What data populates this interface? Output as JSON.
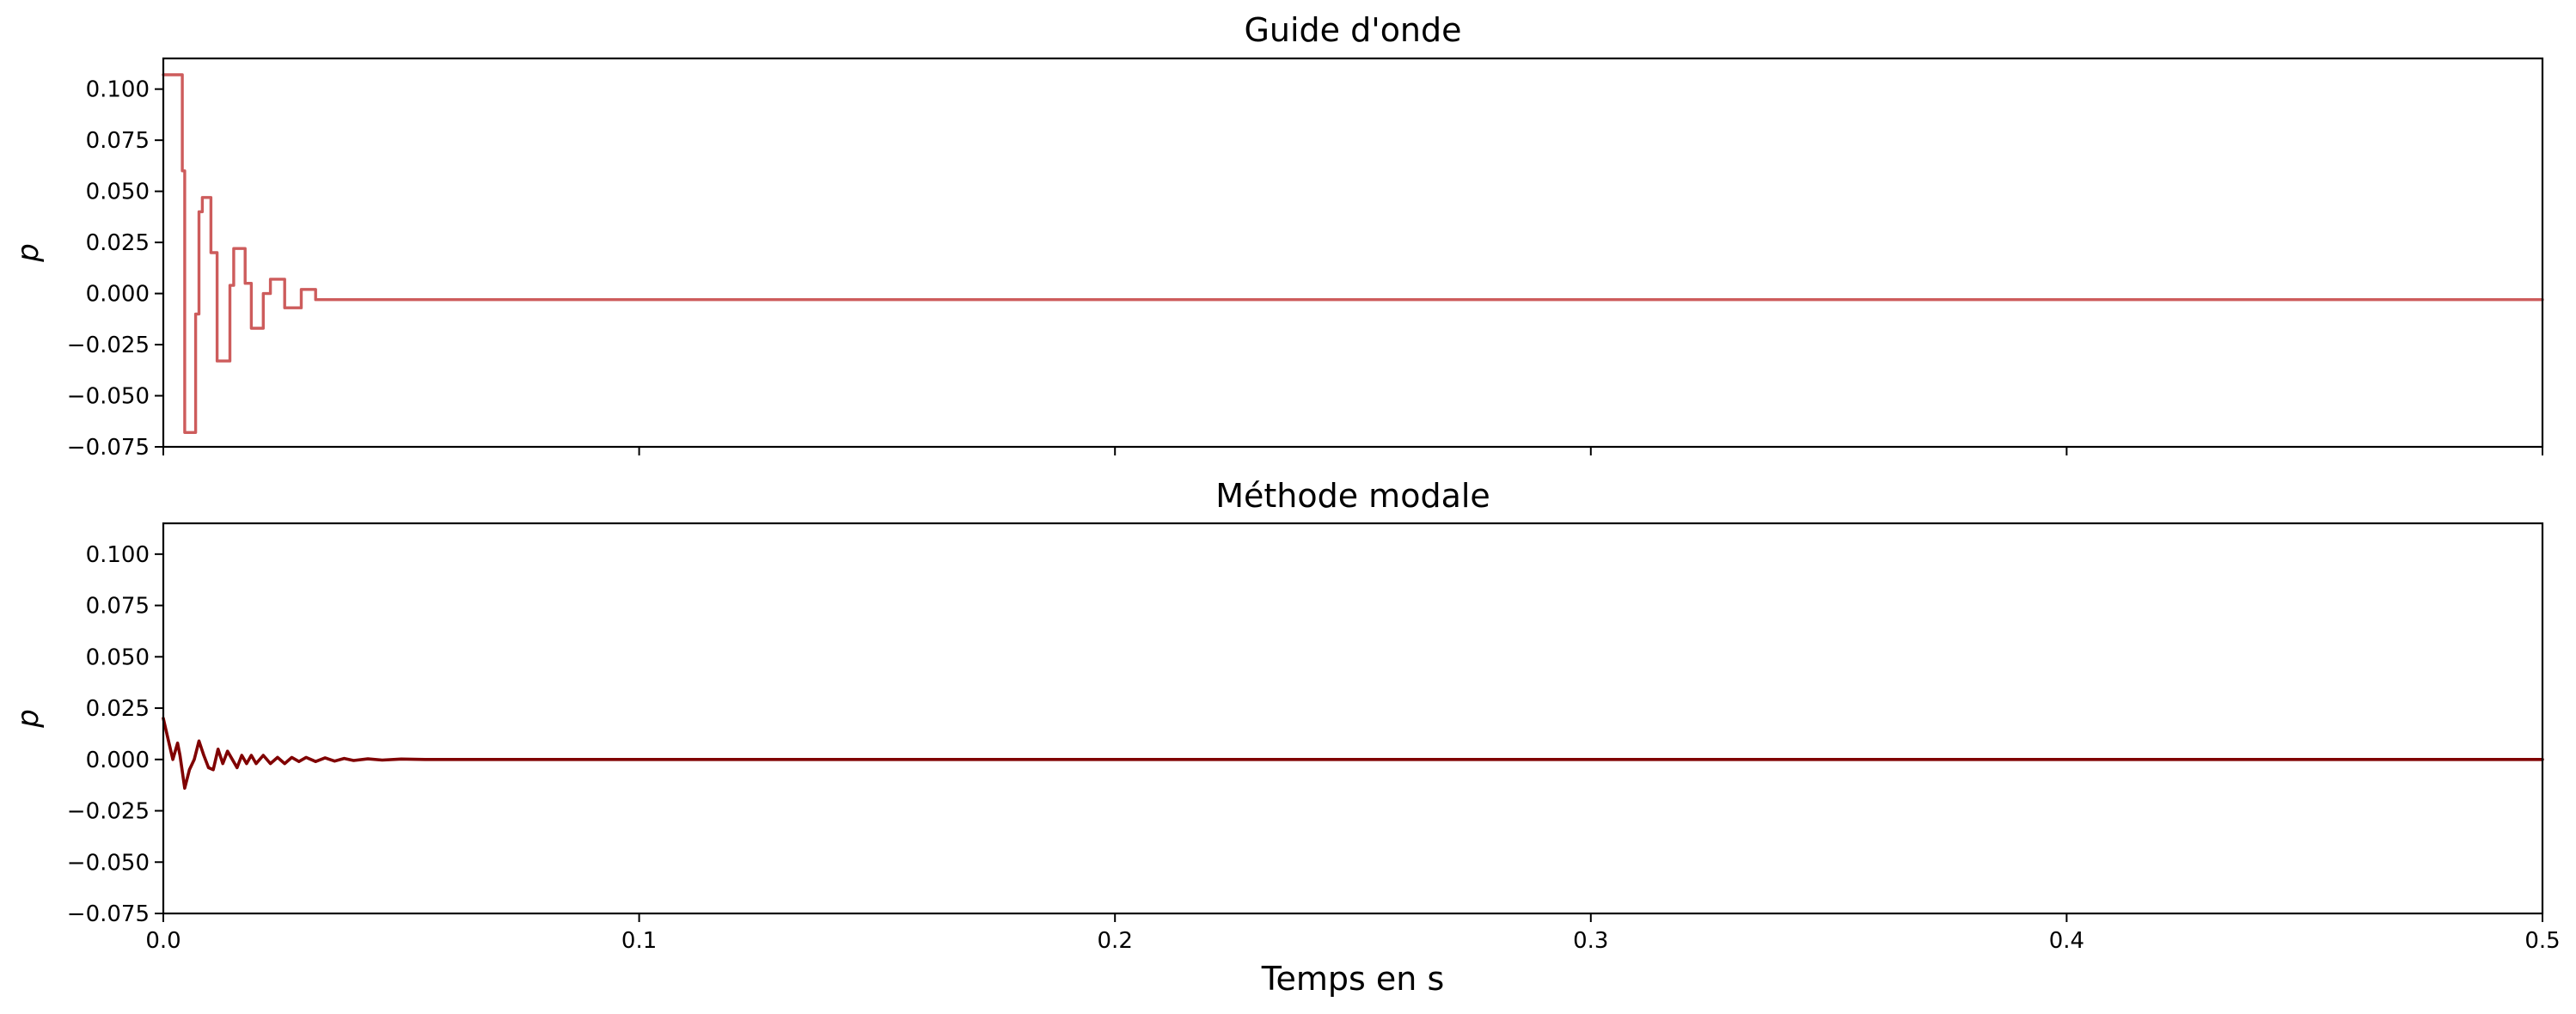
{
  "chart_data": [
    {
      "type": "line",
      "title": "Guide d'onde",
      "ylabel": "p",
      "xlabel": "",
      "xlim": [
        0,
        0.5
      ],
      "ylim": [
        -0.075,
        0.115
      ],
      "yticks": [
        "0.100",
        "0.075",
        "0.050",
        "0.025",
        "0.000",
        "−0.025",
        "−0.050",
        "−0.075"
      ],
      "ytick_values": [
        0.1,
        0.075,
        0.05,
        0.025,
        0.0,
        -0.025,
        -0.05,
        -0.075
      ],
      "xtick_values": [
        0,
        0.1,
        0.2,
        0.3,
        0.4,
        0.5
      ],
      "xticks": [],
      "step": true,
      "color": "#cd5c5c",
      "series": [
        {
          "x": [
            0,
            0.0033,
            0.004,
            0.0045,
            0.0053,
            0.0068,
            0.0075,
            0.0082,
            0.009,
            0.01,
            0.0113,
            0.013,
            0.014,
            0.0148,
            0.016,
            0.0172,
            0.0185,
            0.0197,
            0.021,
            0.0225,
            0.024,
            0.0255,
            0.0275,
            0.029,
            0.0305,
            0.032,
            0.5
          ],
          "y": [
            0.107,
            0.107,
            0.06,
            -0.068,
            -0.068,
            -0.01,
            0.04,
            0.047,
            0.047,
            0.02,
            -0.033,
            -0.033,
            0.004,
            0.022,
            0.022,
            0.005,
            -0.017,
            -0.017,
            0.0,
            0.007,
            0.007,
            -0.007,
            -0.007,
            0.002,
            0.002,
            -0.003,
            -0.003
          ]
        }
      ]
    },
    {
      "type": "line",
      "title": "Méthode modale",
      "ylabel": "p",
      "xlabel": "Temps en s",
      "xlim": [
        0,
        0.5
      ],
      "ylim": [
        -0.075,
        0.115
      ],
      "yticks": [
        "0.100",
        "0.075",
        "0.050",
        "0.025",
        "0.000",
        "−0.025",
        "−0.050",
        "−0.075"
      ],
      "ytick_values": [
        0.1,
        0.075,
        0.05,
        0.025,
        0.0,
        -0.025,
        -0.05,
        -0.075
      ],
      "xtick_values": [
        0,
        0.1,
        0.2,
        0.3,
        0.4,
        0.5
      ],
      "xticks": [
        "0.0",
        "0.1",
        "0.2",
        "0.3",
        "0.4",
        "0.5"
      ],
      "step": false,
      "color": "#800000",
      "series": [
        {
          "x": [
            0,
            0.001,
            0.002,
            0.003,
            0.0035,
            0.0045,
            0.0055,
            0.0065,
            0.0075,
            0.0085,
            0.0095,
            0.0105,
            0.0115,
            0.0125,
            0.0135,
            0.0145,
            0.0155,
            0.0165,
            0.0175,
            0.0185,
            0.0195,
            0.021,
            0.0225,
            0.024,
            0.0255,
            0.027,
            0.0285,
            0.03,
            0.032,
            0.034,
            0.036,
            0.038,
            0.04,
            0.043,
            0.046,
            0.05,
            0.055,
            0.06,
            0.5
          ],
          "y": [
            0.02,
            0.01,
            0.0,
            0.008,
            0.002,
            -0.014,
            -0.005,
            0.0,
            0.009,
            0.002,
            -0.004,
            -0.005,
            0.005,
            -0.002,
            0.004,
            0.0,
            -0.004,
            0.002,
            -0.002,
            0.002,
            -0.002,
            0.002,
            -0.002,
            0.001,
            -0.002,
            0.001,
            -0.001,
            0.001,
            -0.001,
            0.0008,
            -0.0008,
            0.0005,
            -0.0005,
            0.0003,
            -0.0003,
            0.0002,
            0.0,
            0.0,
            0.0
          ]
        }
      ]
    }
  ]
}
